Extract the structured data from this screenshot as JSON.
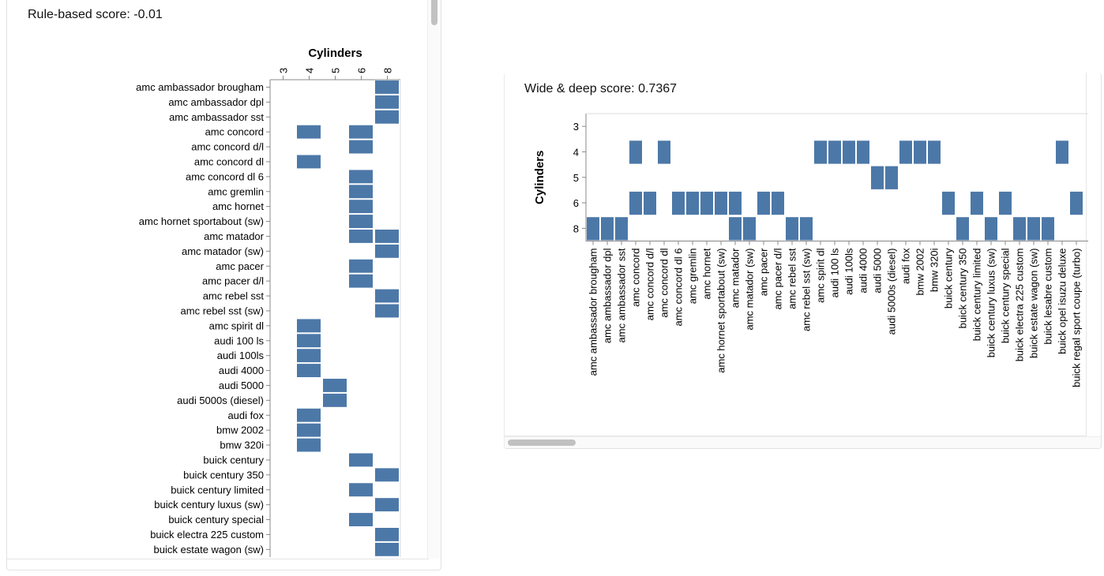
{
  "left_panel": {
    "score_label": "Rule-based score: -0.01"
  },
  "right_panel": {
    "score_label": "Wide & deep score: 0.7367"
  },
  "colors": {
    "cell": "#4c78a8",
    "axis": "#888888",
    "panel_border": "#e2e2e2",
    "scrollbar": "#c1c1c1"
  },
  "chart_data": [
    {
      "type": "heatmap",
      "title": "Rule-based score: -0.01",
      "xlabel": "Cylinders",
      "ylabel": "",
      "x_ticks": [
        "3",
        "4",
        "5",
        "6",
        "8"
      ],
      "categories": [
        "amc ambassador brougham",
        "amc ambassador dpl",
        "amc ambassador sst",
        "amc concord",
        "amc concord d/l",
        "amc concord dl",
        "amc concord dl 6",
        "amc gremlin",
        "amc hornet",
        "amc hornet sportabout (sw)",
        "amc matador",
        "amc matador (sw)",
        "amc pacer",
        "amc pacer d/l",
        "amc rebel sst",
        "amc rebel sst (sw)",
        "amc spirit dl",
        "audi 100 ls",
        "audi 100ls",
        "audi 4000",
        "audi 5000",
        "audi 5000s (diesel)",
        "audi fox",
        "bmw 2002",
        "bmw 320i",
        "buick century",
        "buick century 350",
        "buick century limited",
        "buick century luxus (sw)",
        "buick century special",
        "buick electra 225 custom",
        "buick estate wagon (sw)"
      ],
      "values": [
        [
          "8"
        ],
        [
          "8"
        ],
        [
          "8"
        ],
        [
          "4",
          "6"
        ],
        [
          "6"
        ],
        [
          "4"
        ],
        [
          "6"
        ],
        [
          "6"
        ],
        [
          "6"
        ],
        [
          "6"
        ],
        [
          "6",
          "8"
        ],
        [
          "8"
        ],
        [
          "6"
        ],
        [
          "6"
        ],
        [
          "8"
        ],
        [
          "8"
        ],
        [
          "4"
        ],
        [
          "4"
        ],
        [
          "4"
        ],
        [
          "4"
        ],
        [
          "5"
        ],
        [
          "5"
        ],
        [
          "4"
        ],
        [
          "4"
        ],
        [
          "4"
        ],
        [
          "6"
        ],
        [
          "8"
        ],
        [
          "6"
        ],
        [
          "8"
        ],
        [
          "6"
        ],
        [
          "8"
        ],
        [
          "8"
        ]
      ]
    },
    {
      "type": "heatmap",
      "title": "Wide & deep score: 0.7367",
      "xlabel": "",
      "ylabel": "Cylinders",
      "y_ticks": [
        "3",
        "4",
        "5",
        "6",
        "8"
      ],
      "categories": [
        "amc ambassador brougham",
        "amc ambassador dpl",
        "amc ambassador sst",
        "amc concord",
        "amc concord d/l",
        "amc concord dl",
        "amc concord dl 6",
        "amc gremlin",
        "amc hornet",
        "amc hornet sportabout (sw)",
        "amc matador",
        "amc matador (sw)",
        "amc pacer",
        "amc pacer d/l",
        "amc rebel sst",
        "amc rebel sst (sw)",
        "amc spirit dl",
        "audi 100 ls",
        "audi 100ls",
        "audi 4000",
        "audi 5000",
        "audi 5000s (diesel)",
        "audi fox",
        "bmw 2002",
        "bmw 320i",
        "buick century",
        "buick century 350",
        "buick century limited",
        "buick century luxus (sw)",
        "buick century special",
        "buick electra 225 custom",
        "buick estate wagon (sw)",
        "buick lesabre custom",
        "buick opel isuzu deluxe",
        "buick regal sport coupe (turbo)"
      ],
      "values": [
        [
          "8"
        ],
        [
          "8"
        ],
        [
          "8"
        ],
        [
          "4",
          "6"
        ],
        [
          "6"
        ],
        [
          "4"
        ],
        [
          "6"
        ],
        [
          "6"
        ],
        [
          "6"
        ],
        [
          "6"
        ],
        [
          "6",
          "8"
        ],
        [
          "8"
        ],
        [
          "6"
        ],
        [
          "6"
        ],
        [
          "8"
        ],
        [
          "8"
        ],
        [
          "4"
        ],
        [
          "4"
        ],
        [
          "4"
        ],
        [
          "4"
        ],
        [
          "5"
        ],
        [
          "5"
        ],
        [
          "4"
        ],
        [
          "4"
        ],
        [
          "4"
        ],
        [
          "6"
        ],
        [
          "8"
        ],
        [
          "6"
        ],
        [
          "8"
        ],
        [
          "6"
        ],
        [
          "8"
        ],
        [
          "8"
        ],
        [
          "8"
        ],
        [
          "4"
        ],
        [
          "6"
        ]
      ]
    }
  ]
}
